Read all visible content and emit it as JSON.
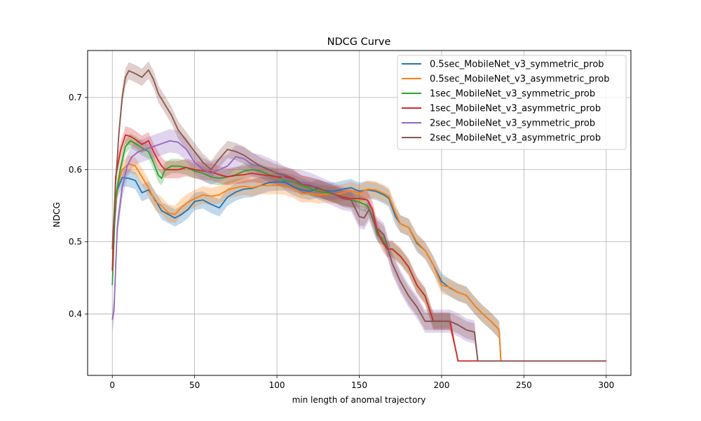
{
  "chart_data": {
    "type": "line",
    "title": "NDCG Curve",
    "xlabel": "min length of anomal trajectory",
    "ylabel": "NDCG",
    "xlim": [
      -15,
      315
    ],
    "ylim": [
      0.315,
      0.765
    ],
    "xticks": [
      0,
      50,
      100,
      150,
      200,
      250,
      300
    ],
    "xtick_labels": [
      "0",
      "50",
      "100",
      "150",
      "200",
      "250",
      "300"
    ],
    "yticks": [
      0.4,
      0.5,
      0.6,
      0.7
    ],
    "ytick_labels": [
      "0.4",
      "0.5",
      "0.6",
      "0.7"
    ],
    "grid": true,
    "legend_position": "top-right",
    "series": [
      {
        "name": "0.5sec_MobileNet_v3_symmetric_prob",
        "color": "#1f77b4",
        "x": [
          1,
          3,
          6,
          10,
          14,
          18,
          22,
          26,
          30,
          34,
          38,
          42,
          46,
          50,
          55,
          60,
          65,
          70,
          75,
          80,
          85,
          90,
          95,
          100,
          105,
          110,
          115,
          120,
          125,
          130,
          135,
          140,
          145,
          150,
          155,
          160,
          165,
          168,
          172,
          175,
          180,
          185,
          190,
          195,
          200,
          205,
          210,
          215,
          220,
          225,
          230,
          235,
          236,
          240,
          250,
          260,
          270,
          280,
          290,
          300
        ],
        "y": [
          0.515,
          0.572,
          0.589,
          0.588,
          0.585,
          0.568,
          0.572,
          0.558,
          0.543,
          0.538,
          0.533,
          0.538,
          0.545,
          0.556,
          0.558,
          0.552,
          0.547,
          0.562,
          0.569,
          0.573,
          0.574,
          0.578,
          0.582,
          0.583,
          0.583,
          0.576,
          0.572,
          0.57,
          0.574,
          0.571,
          0.57,
          0.573,
          0.575,
          0.57,
          0.572,
          0.57,
          0.565,
          0.56,
          0.535,
          0.525,
          0.52,
          0.498,
          0.488,
          0.468,
          0.445,
          0.436,
          0.43,
          0.426,
          0.412,
          0.4,
          0.39,
          0.378,
          0.335,
          0.335,
          0.335,
          0.335,
          0.335,
          0.335,
          0.335,
          0.335
        ],
        "band": 0.012
      },
      {
        "name": "0.5sec_MobileNet_v3_asymmetric_prob",
        "color": "#ff7f0e",
        "x": [
          1,
          3,
          6,
          10,
          14,
          18,
          22,
          26,
          30,
          34,
          38,
          42,
          46,
          50,
          55,
          60,
          65,
          70,
          75,
          80,
          85,
          90,
          95,
          100,
          105,
          110,
          115,
          120,
          125,
          130,
          135,
          140,
          145,
          150,
          155,
          160,
          165,
          168,
          172,
          175,
          180,
          185,
          190,
          195,
          200,
          205,
          210,
          215,
          220,
          225,
          230,
          235,
          236,
          240,
          250,
          260,
          270,
          280,
          290,
          300
        ],
        "y": [
          0.52,
          0.575,
          0.6,
          0.608,
          0.605,
          0.59,
          0.575,
          0.556,
          0.55,
          0.54,
          0.538,
          0.548,
          0.555,
          0.56,
          0.565,
          0.563,
          0.565,
          0.572,
          0.575,
          0.577,
          0.575,
          0.578,
          0.578,
          0.578,
          0.577,
          0.573,
          0.566,
          0.567,
          0.565,
          0.566,
          0.565,
          0.568,
          0.571,
          0.567,
          0.573,
          0.572,
          0.567,
          0.563,
          0.54,
          0.525,
          0.52,
          0.5,
          0.488,
          0.468,
          0.44,
          0.437,
          0.43,
          0.426,
          0.412,
          0.4,
          0.39,
          0.378,
          0.335,
          0.335,
          0.335,
          0.335,
          0.335,
          0.335,
          0.335,
          0.335
        ],
        "band": 0.012
      },
      {
        "name": "1sec_MobileNet_v3_symmetric_prob",
        "color": "#2ca02c",
        "x": [
          0,
          2,
          5,
          8,
          11,
          14,
          18,
          22,
          25,
          28,
          30,
          32,
          36,
          40,
          45,
          50,
          55,
          60,
          65,
          70,
          75,
          80,
          85,
          90,
          95,
          100,
          105,
          110,
          115,
          120,
          125,
          130,
          135,
          140,
          145,
          150,
          155,
          158,
          161,
          164,
          167,
          170,
          175,
          180,
          185,
          190,
          195,
          200,
          205,
          210,
          220,
          230,
          240,
          250,
          260,
          270,
          280,
          290,
          300
        ],
        "y": [
          0.44,
          0.56,
          0.603,
          0.632,
          0.64,
          0.636,
          0.63,
          0.625,
          0.61,
          0.592,
          0.588,
          0.6,
          0.605,
          0.605,
          0.603,
          0.598,
          0.595,
          0.59,
          0.588,
          0.59,
          0.593,
          0.598,
          0.6,
          0.598,
          0.593,
          0.59,
          0.585,
          0.583,
          0.578,
          0.574,
          0.57,
          0.568,
          0.565,
          0.56,
          0.558,
          0.555,
          0.55,
          0.535,
          0.51,
          0.505,
          0.49,
          0.49,
          0.48,
          0.465,
          0.44,
          0.425,
          0.39,
          0.39,
          0.39,
          0.335,
          0.335,
          0.335,
          0.335,
          0.335,
          0.335,
          0.335,
          0.335,
          0.335,
          0.335
        ],
        "band": 0.01
      },
      {
        "name": "1sec_MobileNet_v3_asymmetric_prob",
        "color": "#d62728",
        "x": [
          0,
          2,
          5,
          8,
          11,
          14,
          18,
          22,
          25,
          28,
          30,
          32,
          36,
          40,
          45,
          50,
          55,
          60,
          65,
          70,
          75,
          80,
          85,
          90,
          95,
          100,
          105,
          110,
          115,
          120,
          125,
          130,
          135,
          140,
          145,
          150,
          155,
          158,
          161,
          164,
          167,
          170,
          175,
          180,
          185,
          190,
          195,
          200,
          205,
          210,
          220,
          230,
          240,
          250,
          260,
          270,
          280,
          290,
          300
        ],
        "y": [
          0.46,
          0.59,
          0.627,
          0.648,
          0.646,
          0.642,
          0.635,
          0.64,
          0.625,
          0.612,
          0.605,
          0.6,
          0.6,
          0.6,
          0.603,
          0.6,
          0.598,
          0.597,
          0.593,
          0.59,
          0.592,
          0.593,
          0.595,
          0.593,
          0.592,
          0.59,
          0.59,
          0.586,
          0.58,
          0.578,
          0.574,
          0.57,
          0.566,
          0.562,
          0.56,
          0.56,
          0.558,
          0.545,
          0.515,
          0.5,
          0.49,
          0.49,
          0.48,
          0.465,
          0.44,
          0.425,
          0.39,
          0.39,
          0.39,
          0.335,
          0.335,
          0.335,
          0.335,
          0.335,
          0.335,
          0.335,
          0.335,
          0.335,
          0.335
        ],
        "band": 0.012
      },
      {
        "name": "2sec_MobileNet_v3_symmetric_prob",
        "color": "#9467bd",
        "x": [
          0,
          1,
          3,
          6,
          9,
          12,
          16,
          20,
          25,
          30,
          35,
          40,
          45,
          50,
          55,
          60,
          65,
          70,
          75,
          80,
          85,
          90,
          95,
          100,
          105,
          110,
          115,
          120,
          125,
          130,
          135,
          140,
          145,
          150,
          153,
          156,
          160,
          165,
          170,
          175,
          180,
          185,
          190,
          195,
          200,
          205,
          210,
          215,
          220,
          222,
          230,
          240,
          250,
          260,
          270,
          280,
          290,
          300
        ],
        "y": [
          0.392,
          0.405,
          0.52,
          0.575,
          0.605,
          0.618,
          0.625,
          0.628,
          0.632,
          0.636,
          0.64,
          0.638,
          0.628,
          0.61,
          0.6,
          0.595,
          0.6,
          0.605,
          0.618,
          0.615,
          0.607,
          0.605,
          0.6,
          0.595,
          0.588,
          0.585,
          0.583,
          0.58,
          0.575,
          0.57,
          0.565,
          0.56,
          0.558,
          0.535,
          0.533,
          0.545,
          0.52,
          0.51,
          0.47,
          0.445,
          0.425,
          0.41,
          0.39,
          0.39,
          0.39,
          0.39,
          0.385,
          0.378,
          0.375,
          0.335,
          0.335,
          0.335,
          0.335,
          0.335,
          0.335,
          0.335,
          0.335,
          0.335
        ],
        "band": 0.016
      },
      {
        "name": "2sec_MobileNet_v3_asymmetric_prob",
        "color": "#8c564b",
        "x": [
          0,
          2,
          4,
          6,
          8,
          10,
          14,
          18,
          22,
          25,
          28,
          32,
          36,
          40,
          45,
          50,
          55,
          60,
          65,
          70,
          75,
          80,
          85,
          90,
          95,
          100,
          105,
          110,
          115,
          120,
          125,
          130,
          135,
          140,
          145,
          150,
          153,
          156,
          160,
          165,
          170,
          175,
          180,
          185,
          190,
          195,
          200,
          205,
          210,
          215,
          220,
          222,
          230,
          240,
          250,
          260,
          270,
          280,
          290,
          300
        ],
        "y": [
          0.49,
          0.58,
          0.65,
          0.7,
          0.728,
          0.737,
          0.733,
          0.728,
          0.738,
          0.725,
          0.705,
          0.69,
          0.675,
          0.655,
          0.64,
          0.625,
          0.61,
          0.6,
          0.615,
          0.628,
          0.625,
          0.62,
          0.612,
          0.605,
          0.6,
          0.595,
          0.592,
          0.588,
          0.58,
          0.577,
          0.575,
          0.57,
          0.566,
          0.56,
          0.558,
          0.535,
          0.533,
          0.545,
          0.52,
          0.51,
          0.47,
          0.445,
          0.425,
          0.41,
          0.39,
          0.39,
          0.39,
          0.39,
          0.385,
          0.378,
          0.375,
          0.335,
          0.335,
          0.335,
          0.335,
          0.335,
          0.335,
          0.335,
          0.335,
          0.335
        ],
        "band": 0.012
      }
    ]
  }
}
